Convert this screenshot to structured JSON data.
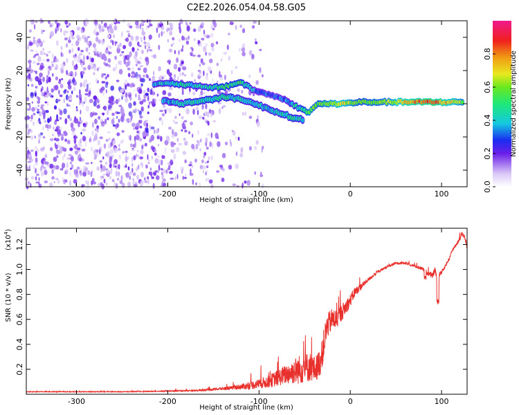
{
  "title": "C2E2.2026.054.04.58.G05",
  "chart_data": [
    {
      "type": "heatmap",
      "name": "spectrogram",
      "xlabel": "Height of straight line (km)",
      "ylabel": "Frequency (Hz)",
      "xlim": [
        -355,
        128
      ],
      "ylim": [
        -50,
        50
      ],
      "xticks": [
        -300,
        -200,
        -100,
        0,
        100
      ],
      "yticks": [
        -40,
        -20,
        0,
        20,
        40
      ],
      "colorbar": {
        "label": "Normalized spectral amplitude",
        "range": [
          0.0,
          1.0
        ],
        "ticks": [
          0.0,
          0.2,
          0.4,
          0.6,
          0.8
        ]
      },
      "ridge": [
        {
          "x": -215,
          "f": 12,
          "a": 0.35
        },
        {
          "x": -190,
          "f": 12,
          "a": 0.45
        },
        {
          "x": -160,
          "f": 10,
          "a": 0.4
        },
        {
          "x": -140,
          "f": 10,
          "a": 0.5
        },
        {
          "x": -120,
          "f": 13,
          "a": 0.5
        },
        {
          "x": -105,
          "f": 8,
          "a": 0.35
        },
        {
          "x": -85,
          "f": 5,
          "a": 0.3
        },
        {
          "x": -70,
          "f": 2,
          "a": 0.35
        },
        {
          "x": -55,
          "f": -3,
          "a": 0.45
        },
        {
          "x": -45,
          "f": -5,
          "a": 0.6
        },
        {
          "x": -35,
          "f": 0,
          "a": 0.55
        },
        {
          "x": -10,
          "f": 0,
          "a": 0.7
        },
        {
          "x": 10,
          "f": 1,
          "a": 0.55
        },
        {
          "x": 40,
          "f": 1,
          "a": 0.6
        },
        {
          "x": 60,
          "f": 1,
          "a": 0.75
        },
        {
          "x": 90,
          "f": 1,
          "a": 0.85
        },
        {
          "x": 110,
          "f": 1,
          "a": 0.7
        },
        {
          "x": 125,
          "f": 1,
          "a": 0.6
        }
      ],
      "lower_ridge": [
        {
          "x": -205,
          "f": 2,
          "a": 0.35
        },
        {
          "x": -185,
          "f": 0,
          "a": 0.4
        },
        {
          "x": -160,
          "f": 2,
          "a": 0.45
        },
        {
          "x": -140,
          "f": 4,
          "a": 0.45
        },
        {
          "x": -120,
          "f": 3,
          "a": 0.4
        },
        {
          "x": -100,
          "f": -1,
          "a": 0.4
        },
        {
          "x": -85,
          "f": -4,
          "a": 0.4
        },
        {
          "x": -65,
          "f": -8,
          "a": 0.45
        },
        {
          "x": -50,
          "f": -10,
          "a": 0.4
        }
      ]
    },
    {
      "type": "line",
      "name": "snr",
      "xlabel": "Height of straight line (km)",
      "ylabel": "SNR (10 * v/v)",
      "yscale_label": "(x10",
      "yscale_exp": "4",
      "xlim": [
        -355,
        128
      ],
      "ylim": [
        0.0,
        1.33
      ],
      "xticks": [
        -300,
        -200,
        -100,
        0,
        100
      ],
      "yticks": [
        0.2,
        0.4,
        0.6,
        0.8,
        1.0,
        1.2
      ],
      "ytick_labels": [
        "0.2",
        "0.4",
        "0.6",
        "0.8",
        "1.0",
        "1.2"
      ],
      "color": "#e8302c",
      "x": [
        -355,
        -300,
        -250,
        -200,
        -170,
        -150,
        -130,
        -110,
        -90,
        -70,
        -55,
        -45,
        -38,
        -32,
        -28,
        -25,
        -20,
        -15,
        -10,
        -5,
        0,
        5,
        10,
        20,
        30,
        40,
        50,
        60,
        70,
        80,
        85,
        90,
        93,
        95,
        98,
        102,
        108,
        113,
        118,
        122,
        125,
        128
      ],
      "values": [
        0.02,
        0.02,
        0.02,
        0.025,
        0.03,
        0.04,
        0.05,
        0.07,
        0.1,
        0.16,
        0.2,
        0.22,
        0.2,
        0.28,
        0.45,
        0.55,
        0.6,
        0.6,
        0.65,
        0.7,
        0.75,
        0.82,
        0.85,
        0.92,
        0.98,
        1.02,
        1.05,
        1.05,
        1.03,
        1.0,
        0.97,
        0.95,
        1.0,
        0.92,
        0.96,
        1.0,
        1.08,
        1.17,
        1.22,
        1.28,
        1.27,
        1.18
      ],
      "noise": [
        0.003,
        0.003,
        0.003,
        0.004,
        0.006,
        0.01,
        0.015,
        0.03,
        0.05,
        0.08,
        0.12,
        0.12,
        0.1,
        0.12,
        0.12,
        0.1,
        0.09,
        0.08,
        0.07,
        0.06,
        0.05,
        0.04,
        0.03,
        0.015,
        0.012,
        0.01,
        0.01,
        0.01,
        0.01,
        0.015,
        0.02,
        0.02,
        0.03,
        0.04,
        0.02,
        0.015,
        0.015,
        0.015,
        0.015,
        0.02,
        0.02,
        0.03
      ],
      "dips": [
        {
          "x": 96,
          "value": 0.72
        },
        {
          "x": 82,
          "value": 0.9
        }
      ]
    }
  ]
}
